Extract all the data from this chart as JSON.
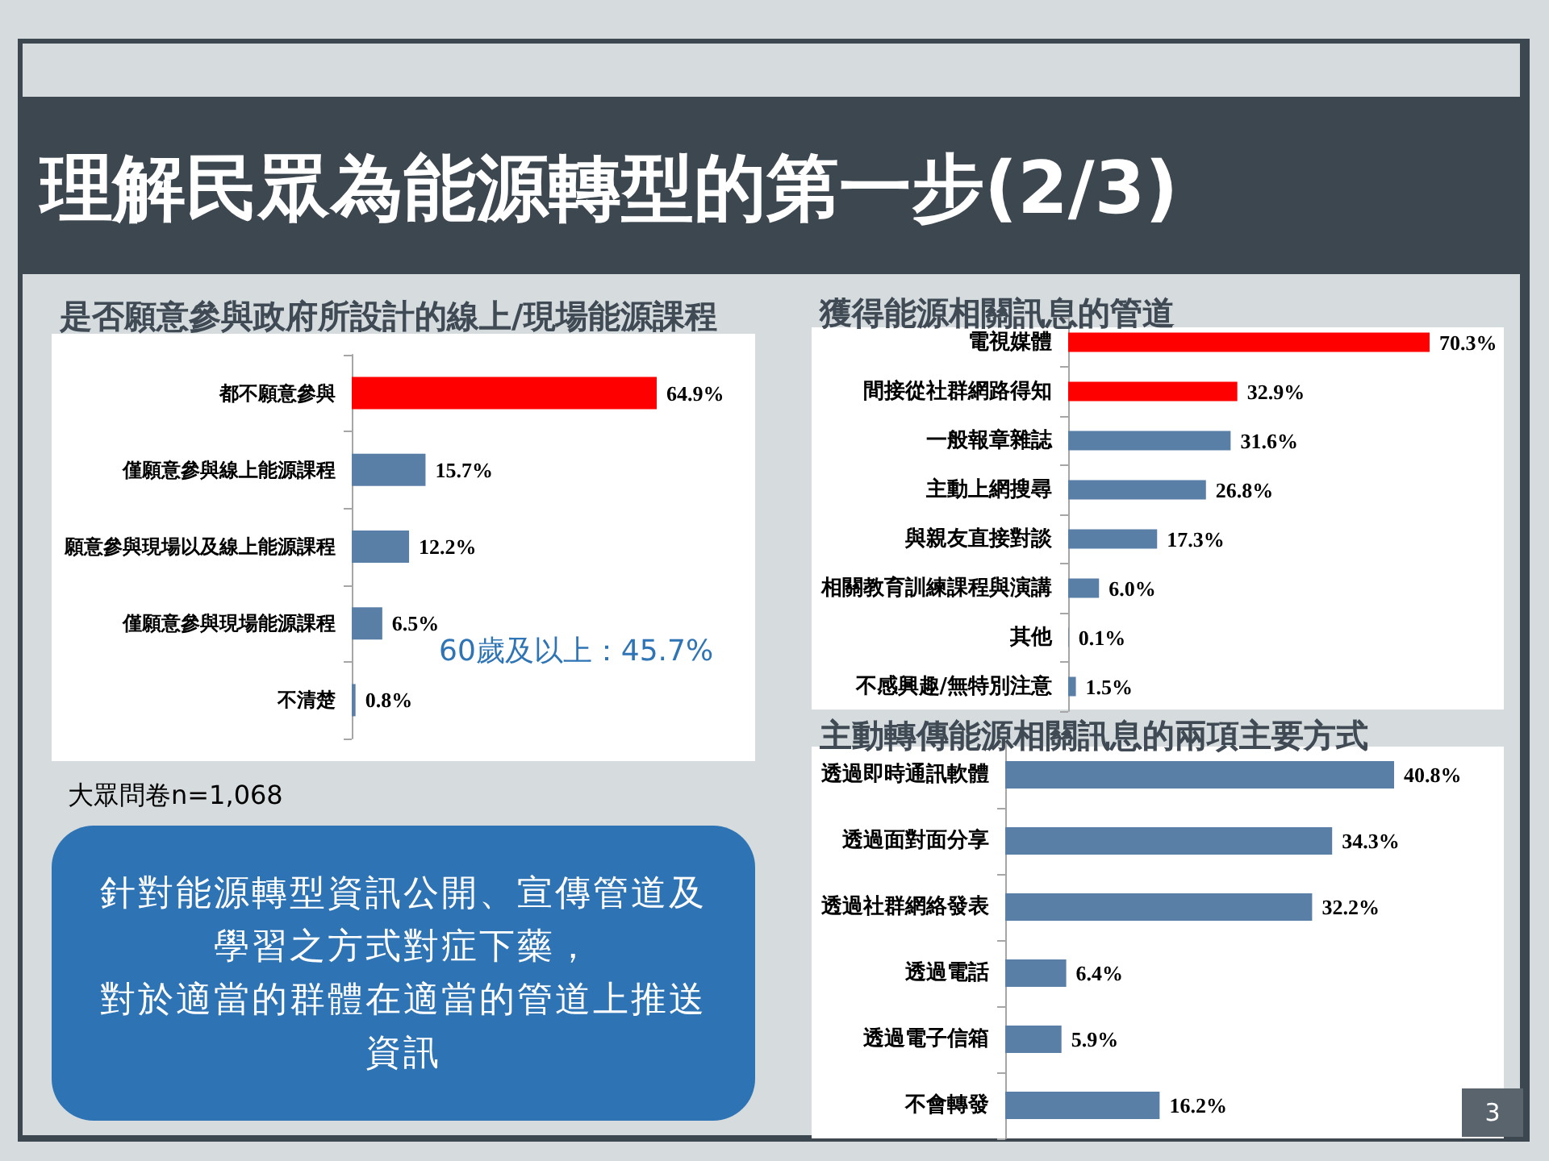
{
  "chart_data": [
    {
      "type": "other",
      "title": "理解民眾為能源轉型的第一步(2/3)",
      "annotations": [
        "針對能源轉型資訊公開、宣傳管道及學習之方式對症下藥，",
        "對於適當的群體在適當的管道上推送資訊",
        "3"
      ]
    },
    {
      "type": "bar",
      "orientation": "horizontal",
      "title": "是否願意參與政府所設計的線上/現場能源課程",
      "categories": [
        "都不願意參與",
        "僅願意參與線上能源課程",
        "願意參與現場以及線上能源課程",
        "僅願意參與現場能源課程",
        "不清楚"
      ],
      "values": [
        64.9,
        15.7,
        12.2,
        6.5,
        0.8
      ],
      "colors": [
        "#ff0000",
        "#5a7fa7",
        "#5a7fa7",
        "#5a7fa7",
        "#5a7fa7"
      ],
      "value_labels": [
        "64.9%",
        "15.7%",
        "12.2%",
        "6.5%",
        "0.8%"
      ],
      "tick_labels": "y",
      "annotations": [
        "60歲及以上：45.7%",
        "大眾問卷n=1,068"
      ]
    },
    {
      "type": "bar",
      "orientation": "horizontal",
      "title": "獲得能源相關訊息的管道",
      "categories": [
        "電視媒體",
        "間接從社群網路得知",
        "一般報章雜誌",
        "主動上網搜尋",
        "與親友直接對談",
        "相關教育訓練課程與演講",
        "其他",
        "不感興趣/無特別注意"
      ],
      "values": [
        70.3,
        32.9,
        31.6,
        26.8,
        17.3,
        6.0,
        0.1,
        1.5
      ],
      "colors": [
        "#ff0000",
        "#ff0000",
        "#5a7fa7",
        "#5a7fa7",
        "#5a7fa7",
        "#5a7fa7",
        "#5a7fa7",
        "#5a7fa7"
      ],
      "value_labels": [
        "70.3%",
        "32.9%",
        "31.6%",
        "26.8%",
        "17.3%",
        "6.0%",
        "0.1%",
        "1.5%"
      ],
      "tick_labels": "y"
    },
    {
      "type": "bar",
      "orientation": "horizontal",
      "title": "主動轉傳能源相關訊息的兩項主要方式",
      "categories": [
        "透過即時通訊軟體",
        "透過面對面分享",
        "透過社群網絡發表",
        "透過電話",
        "透過電子信箱",
        "不會轉發"
      ],
      "values": [
        40.8,
        34.3,
        32.2,
        6.4,
        5.9,
        16.2
      ],
      "colors": [
        "#5a7fa7",
        "#5a7fa7",
        "#5a7fa7",
        "#5a7fa7",
        "#5a7fa7",
        "#5a7fa7"
      ],
      "value_labels": [
        "40.8%",
        "34.3%",
        "32.2%",
        "6.4%",
        "5.9%",
        "16.2%"
      ],
      "tick_labels": "y"
    }
  ]
}
